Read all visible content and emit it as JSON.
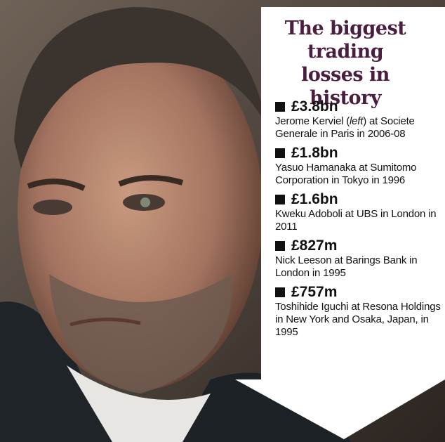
{
  "panel": {
    "title": "The biggest trading losses in history",
    "entries": [
      {
        "amount": "£3.8bn",
        "description": [
          "Jerome Kerviel (",
          {
            "text": "left",
            "italic": true
          },
          ") at Societe Generale in Paris in 2006-08"
        ]
      },
      {
        "amount": "£1.8bn",
        "description": [
          "Yasuo Hamanaka at Sumitomo Corporation in Tokyo in 1996"
        ]
      },
      {
        "amount": "£1.6bn",
        "description": [
          "Kweku Adoboli at UBS in London in 2011"
        ]
      },
      {
        "amount": "£827m",
        "description": [
          "Nick Leeson at Barings Bank in London in 1995"
        ]
      },
      {
        "amount": "£757m",
        "description": [
          "Toshihide Iguchi at Resona Holdings in New York and Osaka, Japan, in 1995"
        ]
      }
    ]
  }
}
